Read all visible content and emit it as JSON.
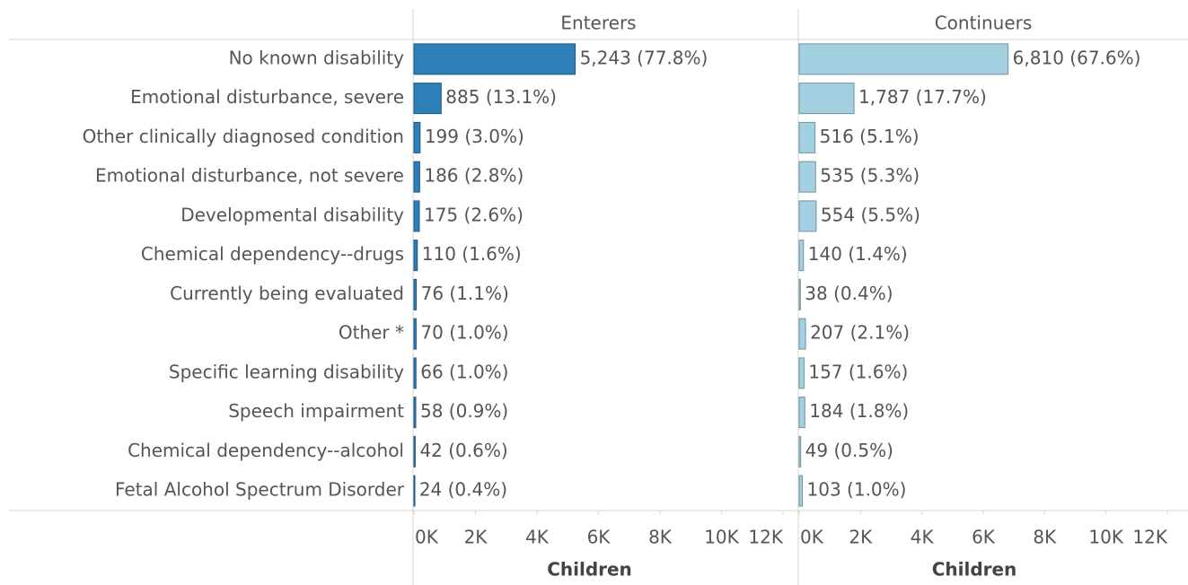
{
  "chart_data": {
    "type": "bar",
    "categories": [
      "No known disability",
      "Emotional disturbance, severe",
      "Other clinically diagnosed condition",
      "Emotional disturbance, not severe",
      "Developmental disability",
      "Chemical dependency--drugs",
      "Currently being evaluated",
      "Other *",
      "Specific learning disability",
      "Speech impairment",
      "Chemical dependency--alcohol",
      "Fetal Alcohol Spectrum Disorder"
    ],
    "series": [
      {
        "name": "Enterers",
        "color": "#2e7eb7",
        "values": [
          5243,
          885,
          199,
          186,
          175,
          110,
          76,
          70,
          66,
          58,
          42,
          24
        ],
        "value_labels": [
          "5,243 (77.8%)",
          "885 (13.1%)",
          "199 (3.0%)",
          "186 (2.8%)",
          "175 (2.6%)",
          "110 (1.6%)",
          "76 (1.1%)",
          "70 (1.0%)",
          "66 (1.0%)",
          "58 (0.9%)",
          "42 (0.6%)",
          "24 (0.4%)"
        ]
      },
      {
        "name": "Continuers",
        "color": "#a3d0e1",
        "values": [
          6810,
          1787,
          516,
          535,
          554,
          140,
          38,
          207,
          157,
          184,
          49,
          103
        ],
        "value_labels": [
          "6,810 (67.6%)",
          "1,787 (17.7%)",
          "516 (5.1%)",
          "535 (5.3%)",
          "554 (5.5%)",
          "140 (1.4%)",
          "38 (0.4%)",
          "207 (2.1%)",
          "157 (1.6%)",
          "184 (1.8%)",
          "49 (0.5%)",
          "103 (1.0%)"
        ]
      }
    ],
    "xlim": [
      0,
      12000
    ],
    "xticks": [
      {
        "value": 0,
        "label": "0K"
      },
      {
        "value": 2000,
        "label": "2K"
      },
      {
        "value": 4000,
        "label": "4K"
      },
      {
        "value": 6000,
        "label": "6K"
      },
      {
        "value": 8000,
        "label": "8K"
      },
      {
        "value": 10000,
        "label": "10K"
      },
      {
        "value": 12000,
        "label": "12K"
      }
    ],
    "xlabel": "Children"
  }
}
